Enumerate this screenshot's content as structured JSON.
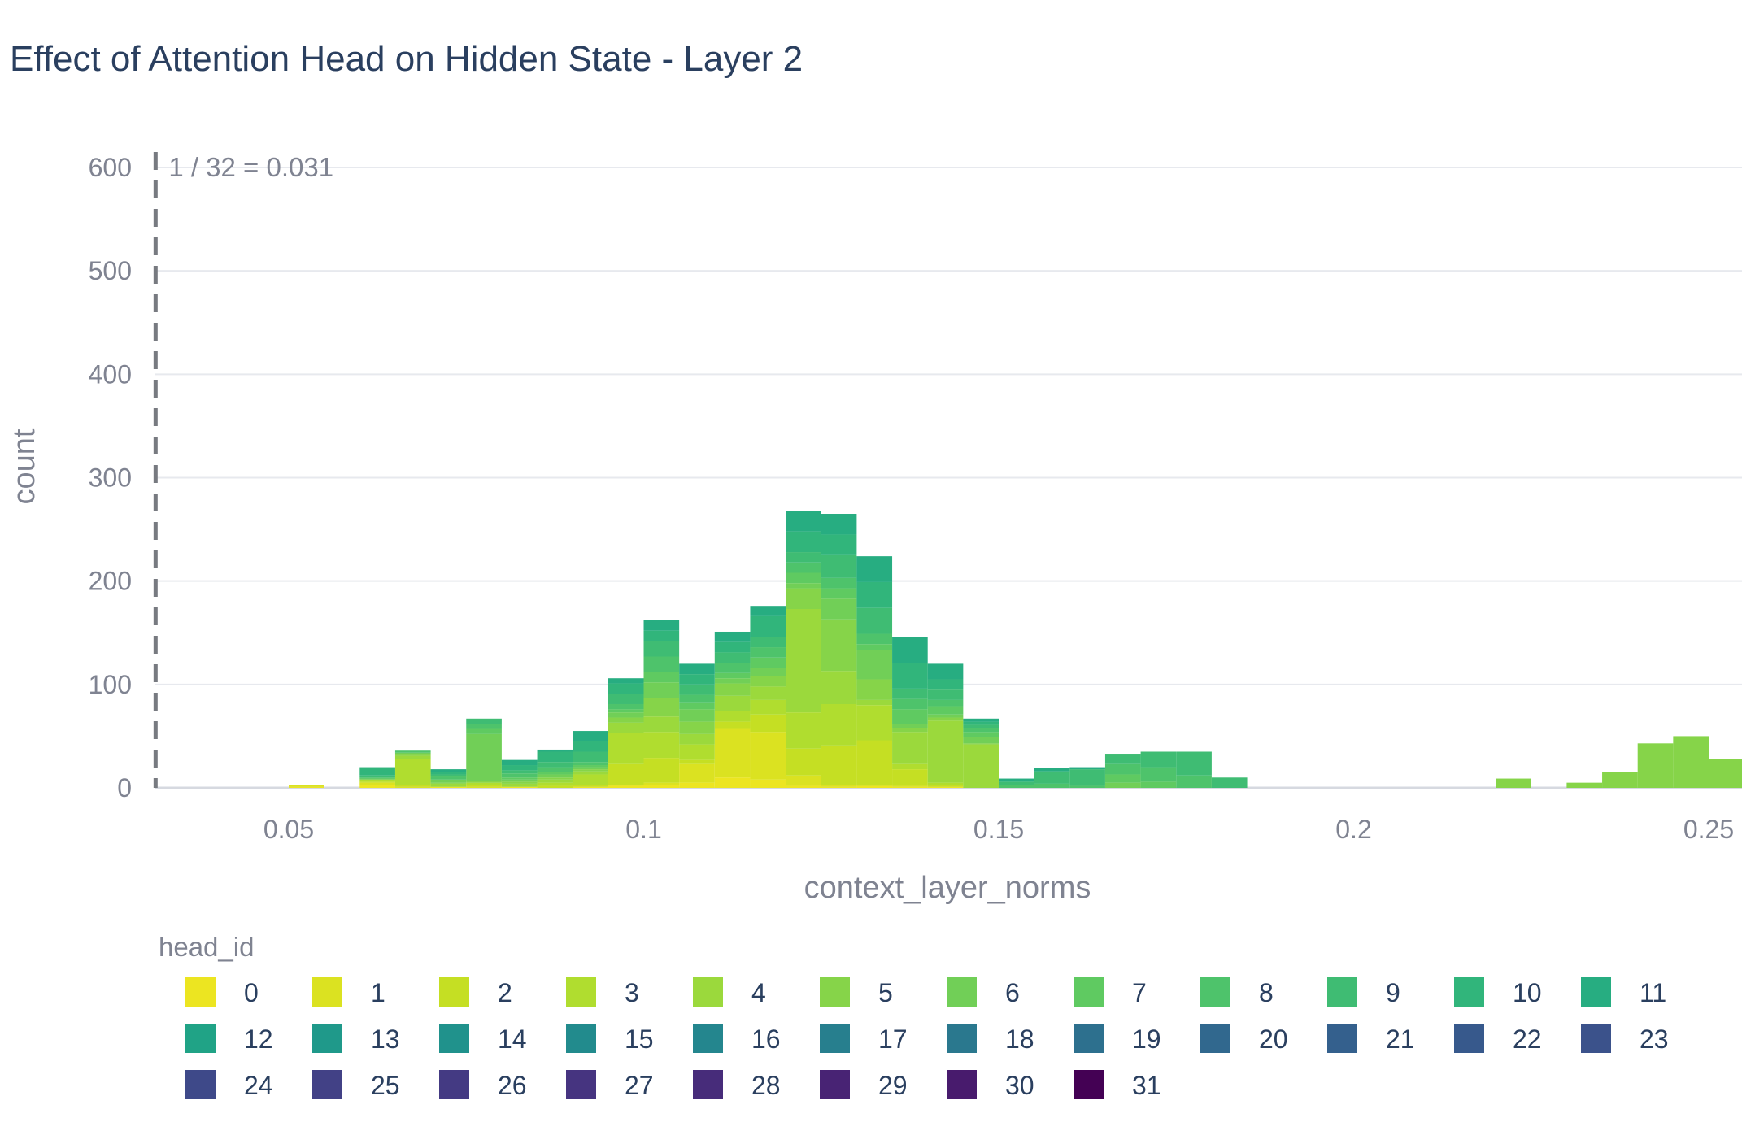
{
  "chart_data": {
    "type": "bar",
    "title": "Effect of Attention Head on Hidden State - Layer 2",
    "xlabel": "context_layer_norms",
    "ylabel": "count",
    "xlim": [
      0.031,
      0.256
    ],
    "ylim": [
      0,
      600
    ],
    "xticks": [
      0.05,
      0.1,
      0.15,
      0.2,
      0.25
    ],
    "xtick_labels": [
      "0.05",
      "0.1",
      "0.15",
      "0.2",
      "0.25"
    ],
    "yticks": [
      0,
      100,
      200,
      300,
      400,
      500,
      600
    ],
    "ytick_labels": [
      "0",
      "100",
      "200",
      "300",
      "400",
      "500",
      "600"
    ],
    "vline": {
      "x": 0.03125,
      "label": "1 / 32 = 0.031"
    },
    "bin_width": 0.005,
    "legend_title": "head_id",
    "legend_placement": "bottom",
    "grid": true,
    "head_colors": [
      "#ece521",
      "#dbe221",
      "#c5df23",
      "#b0dd2f",
      "#9bd93c",
      "#86d449",
      "#71cf57",
      "#5fca61",
      "#4ec36b",
      "#3fbc73",
      "#31b57b",
      "#27ad81",
      "#20a386",
      "#1f998a",
      "#20928c",
      "#228b8d",
      "#24868e",
      "#277f8e",
      "#2a788e",
      "#2d708e",
      "#31688e",
      "#34608d",
      "#37598c",
      "#3b528b",
      "#3e4989",
      "#424186",
      "#443a83",
      "#463480",
      "#472c7a",
      "#482374",
      "#481b6d",
      "#440154"
    ],
    "series": [
      {
        "name": "0",
        "values": [
          [
            0.0525,
            1
          ],
          [
            0.0625,
            3
          ],
          [
            0.0725,
            1
          ],
          [
            0.0825,
            1
          ],
          [
            0.0925,
            1
          ],
          [
            0.0975,
            2
          ],
          [
            0.1025,
            3
          ],
          [
            0.1075,
            5
          ],
          [
            0.1125,
            10
          ],
          [
            0.1175,
            8
          ],
          [
            0.1225,
            2
          ],
          [
            0.1275,
            1
          ],
          [
            0.1325,
            2
          ],
          [
            0.1375,
            1
          ],
          [
            0.1425,
            1
          ]
        ]
      },
      {
        "name": "1",
        "values": [
          [
            0.0525,
            2
          ],
          [
            0.0625,
            2
          ],
          [
            0.0675,
            1
          ],
          [
            0.0775,
            1
          ],
          [
            0.0975,
            1
          ],
          [
            0.1025,
            2
          ],
          [
            0.1075,
            18
          ],
          [
            0.1125,
            47
          ],
          [
            0.1175,
            46
          ],
          [
            0.1225,
            10
          ],
          [
            0.1275,
            2
          ],
          [
            0.1375,
            1
          ]
        ]
      },
      {
        "name": "2",
        "values": [
          [
            0.0625,
            1
          ],
          [
            0.0675,
            2
          ],
          [
            0.0775,
            2
          ],
          [
            0.0875,
            2
          ],
          [
            0.0925,
            2
          ],
          [
            0.0975,
            20
          ],
          [
            0.1025,
            24
          ],
          [
            0.1075,
            4
          ],
          [
            0.1125,
            7
          ],
          [
            0.1175,
            17
          ],
          [
            0.1225,
            26
          ],
          [
            0.1275,
            38
          ],
          [
            0.1325,
            44
          ],
          [
            0.1375,
            16
          ],
          [
            0.1425,
            2
          ]
        ]
      },
      {
        "name": "3",
        "values": [
          [
            0.0625,
            2
          ],
          [
            0.0675,
            25
          ],
          [
            0.0775,
            2
          ],
          [
            0.0875,
            3
          ],
          [
            0.0925,
            10
          ],
          [
            0.0975,
            30
          ],
          [
            0.1025,
            25
          ],
          [
            0.1075,
            15
          ],
          [
            0.1125,
            10
          ],
          [
            0.1175,
            14
          ],
          [
            0.1225,
            35
          ],
          [
            0.1275,
            40
          ],
          [
            0.1325,
            34
          ],
          [
            0.1375,
            5
          ],
          [
            0.1425,
            2
          ]
        ]
      },
      {
        "name": "4",
        "values": [
          [
            0.0675,
            3
          ],
          [
            0.0725,
            3
          ],
          [
            0.0825,
            3
          ],
          [
            0.0875,
            3
          ],
          [
            0.0925,
            3
          ],
          [
            0.0975,
            10
          ],
          [
            0.1025,
            15
          ],
          [
            0.1075,
            10
          ],
          [
            0.1125,
            15
          ],
          [
            0.1175,
            13
          ],
          [
            0.1225,
            100
          ],
          [
            0.1275,
            32
          ],
          [
            0.1325,
            5
          ],
          [
            0.1375,
            31
          ],
          [
            0.1425,
            60
          ],
          [
            0.1475,
            42
          ]
        ]
      },
      {
        "name": "5",
        "values": [
          [
            0.0675,
            2
          ],
          [
            0.0725,
            1
          ],
          [
            0.0775,
            2
          ],
          [
            0.0825,
            2
          ],
          [
            0.0875,
            2
          ],
          [
            0.0925,
            2
          ],
          [
            0.0975,
            5
          ],
          [
            0.1025,
            18
          ],
          [
            0.1075,
            12
          ],
          [
            0.1125,
            12
          ],
          [
            0.1175,
            10
          ],
          [
            0.1225,
            20
          ],
          [
            0.1275,
            50
          ],
          [
            0.1325,
            20
          ],
          [
            0.1375,
            4
          ],
          [
            0.1425,
            3
          ],
          [
            0.1475,
            1
          ],
          [
            0.2225,
            9
          ],
          [
            0.2325,
            5
          ],
          [
            0.2375,
            15
          ],
          [
            0.2425,
            43
          ],
          [
            0.2475,
            50
          ],
          [
            0.2525,
            28
          ]
        ]
      },
      {
        "name": "6",
        "values": [
          [
            0.0625,
            1
          ],
          [
            0.0675,
            1
          ],
          [
            0.0725,
            3
          ],
          [
            0.0775,
            45
          ],
          [
            0.0825,
            2
          ],
          [
            0.0875,
            3
          ],
          [
            0.0925,
            2
          ],
          [
            0.0975,
            5
          ],
          [
            0.1025,
            15
          ],
          [
            0.1075,
            12
          ],
          [
            0.1125,
            5
          ],
          [
            0.1175,
            8
          ],
          [
            0.1225,
            5
          ],
          [
            0.1275,
            20
          ],
          [
            0.1325,
            28
          ],
          [
            0.1375,
            4
          ],
          [
            0.1425,
            3
          ],
          [
            0.1475,
            6
          ],
          [
            0.1675,
            5
          ]
        ]
      },
      {
        "name": "7",
        "values": [
          [
            0.0775,
            5
          ],
          [
            0.0825,
            2
          ],
          [
            0.0875,
            2
          ],
          [
            0.0925,
            2
          ],
          [
            0.0975,
            3
          ],
          [
            0.1025,
            10
          ],
          [
            0.1075,
            6
          ],
          [
            0.1125,
            5
          ],
          [
            0.1175,
            10
          ],
          [
            0.1225,
            10
          ],
          [
            0.1275,
            10
          ],
          [
            0.1325,
            6
          ],
          [
            0.1375,
            14
          ],
          [
            0.1425,
            8
          ],
          [
            0.1475,
            5
          ],
          [
            0.1675,
            8
          ],
          [
            0.1725,
            6
          ]
        ]
      },
      {
        "name": "8",
        "values": [
          [
            0.0625,
            1
          ],
          [
            0.0675,
            2
          ],
          [
            0.0725,
            3
          ],
          [
            0.0775,
            5
          ],
          [
            0.0825,
            4
          ],
          [
            0.0875,
            5
          ],
          [
            0.0925,
            3
          ],
          [
            0.0975,
            5
          ],
          [
            0.1025,
            15
          ],
          [
            0.1075,
            8
          ],
          [
            0.1125,
            10
          ],
          [
            0.1175,
            10
          ],
          [
            0.1225,
            10
          ],
          [
            0.1275,
            10
          ],
          [
            0.1325,
            10
          ],
          [
            0.1375,
            10
          ],
          [
            0.1425,
            6
          ],
          [
            0.1475,
            4
          ],
          [
            0.1525,
            3
          ],
          [
            0.1575,
            4
          ],
          [
            0.1625,
            2
          ],
          [
            0.1675,
            10
          ],
          [
            0.1725,
            14
          ],
          [
            0.1775,
            12
          ]
        ]
      },
      {
        "name": "9",
        "values": [
          [
            0.0625,
            2
          ],
          [
            0.0725,
            2
          ],
          [
            0.0775,
            5
          ],
          [
            0.0825,
            3
          ],
          [
            0.0875,
            5
          ],
          [
            0.0925,
            10
          ],
          [
            0.0975,
            10
          ],
          [
            0.1025,
            15
          ],
          [
            0.1075,
            10
          ],
          [
            0.1125,
            10
          ],
          [
            0.1175,
            10
          ],
          [
            0.1225,
            10
          ],
          [
            0.1275,
            22
          ],
          [
            0.1325,
            25
          ],
          [
            0.1375,
            10
          ],
          [
            0.1425,
            10
          ],
          [
            0.1475,
            3
          ],
          [
            0.1525,
            3
          ],
          [
            0.1575,
            12
          ],
          [
            0.1625,
            16
          ],
          [
            0.1675,
            10
          ],
          [
            0.1725,
            15
          ],
          [
            0.1775,
            23
          ],
          [
            0.1825,
            10
          ]
        ]
      },
      {
        "name": "10",
        "values": [
          [
            0.0625,
            8
          ],
          [
            0.0725,
            2
          ],
          [
            0.0825,
            5
          ],
          [
            0.0875,
            10
          ],
          [
            0.0925,
            10
          ],
          [
            0.0975,
            10
          ],
          [
            0.1025,
            10
          ],
          [
            0.1075,
            10
          ],
          [
            0.1125,
            10
          ],
          [
            0.1175,
            20
          ],
          [
            0.1225,
            20
          ],
          [
            0.1275,
            20
          ],
          [
            0.1325,
            25
          ],
          [
            0.1375,
            25
          ],
          [
            0.1425,
            10
          ],
          [
            0.1475,
            3
          ]
        ]
      },
      {
        "name": "11",
        "values": [
          [
            0.0725,
            3
          ],
          [
            0.0825,
            5
          ],
          [
            0.0875,
            2
          ],
          [
            0.0925,
            10
          ],
          [
            0.0975,
            5
          ],
          [
            0.1025,
            10
          ],
          [
            0.1075,
            10
          ],
          [
            0.1125,
            10
          ],
          [
            0.1175,
            10
          ],
          [
            0.1225,
            20
          ],
          [
            0.1275,
            20
          ],
          [
            0.1325,
            25
          ],
          [
            0.1375,
            25
          ],
          [
            0.1425,
            15
          ],
          [
            0.1475,
            3
          ],
          [
            0.1525,
            3
          ],
          [
            0.1575,
            3
          ],
          [
            0.1625,
            2
          ]
        ]
      }
    ]
  }
}
